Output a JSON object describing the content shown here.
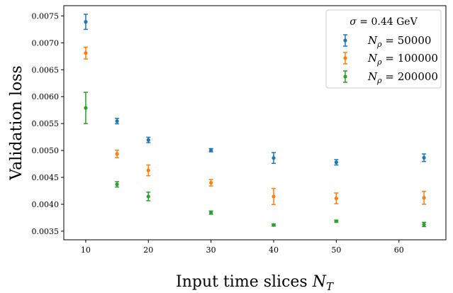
{
  "chart_data": {
    "type": "scatter",
    "title": "",
    "xlabel": "Input time slices N_T",
    "ylabel": "Validation loss",
    "xlim": [
      6.5,
      67.5
    ],
    "ylim": [
      0.00334,
      0.00769
    ],
    "grid": false,
    "legend": {
      "placement": "top-right",
      "title": "σ = 0.44 GeV"
    },
    "x": [
      10,
      15,
      20,
      30,
      40,
      50,
      64
    ],
    "x_ticks": [
      "10",
      "20",
      "30",
      "40",
      "50",
      "60"
    ],
    "y_ticks": [
      "0.0035",
      "0.0040",
      "0.0045",
      "0.0050",
      "0.0055",
      "0.0060",
      "0.0065",
      "0.0070",
      "0.0075"
    ],
    "series": [
      {
        "name": "N_ρ = 50000",
        "color": "#1f77b4",
        "values": [
          0.00739,
          0.005545,
          0.005195,
          0.005005,
          0.00486,
          0.00478,
          0.004865
        ],
        "errors": [
          0.00014,
          5e-05,
          5e-05,
          3e-05,
          0.0001,
          5e-05,
          7e-05
        ]
      },
      {
        "name": "N_ρ = 100000",
        "color": "#ff7f0e",
        "values": [
          0.00681,
          0.004935,
          0.00463,
          0.0044,
          0.004145,
          0.00411,
          0.00412
        ],
        "errors": [
          0.00011,
          7e-05,
          0.0001,
          6e-05,
          0.00015,
          0.0001,
          0.00012
        ]
      },
      {
        "name": "N_ρ = 200000",
        "color": "#2ca02c",
        "values": [
          0.00579,
          0.00437,
          0.004145,
          0.003845,
          0.003615,
          0.003685,
          0.003625
        ],
        "errors": [
          0.00029,
          5e-05,
          8e-05,
          3e-05,
          2e-05,
          2e-05,
          4e-05
        ]
      }
    ]
  }
}
